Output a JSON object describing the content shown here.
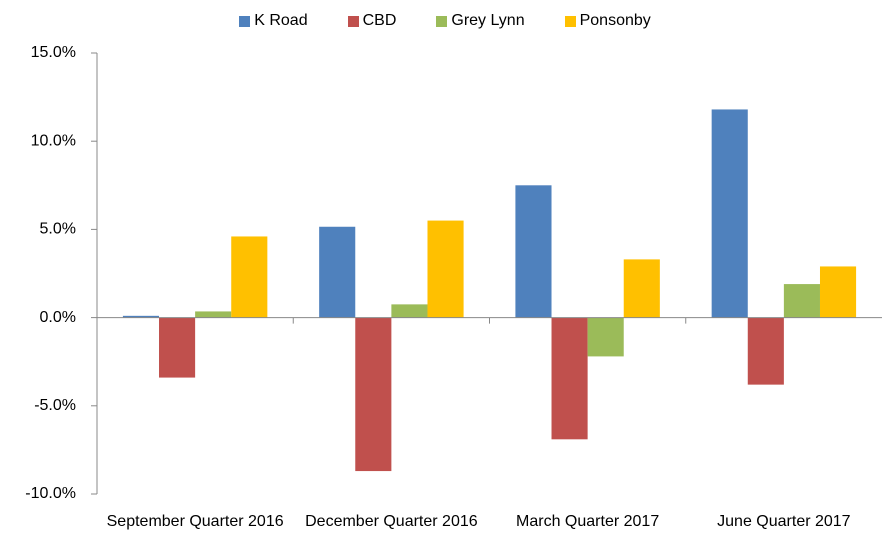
{
  "chart_data": {
    "type": "bar",
    "categories": [
      "September Quarter 2016",
      "December Quarter 2016",
      "March Quarter 2017",
      "June Quarter 2017"
    ],
    "series": [
      {
        "name": "K Road",
        "color": "#4f81bd",
        "values": [
          0.1,
          5.15,
          7.5,
          11.8
        ]
      },
      {
        "name": "CBD",
        "color": "#c0504d",
        "values": [
          -3.4,
          -8.7,
          -6.9,
          -3.8
        ]
      },
      {
        "name": "Grey Lynn",
        "color": "#9bbb59",
        "values": [
          0.35,
          0.75,
          -2.2,
          1.9
        ]
      },
      {
        "name": "Ponsonby",
        "color": "#ffc000",
        "values": [
          4.6,
          5.5,
          3.3,
          2.9
        ]
      }
    ],
    "ylim": [
      -10,
      15
    ],
    "yticks": [
      {
        "value": -10,
        "label": "-10.0%"
      },
      {
        "value": -5,
        "label": "-5.0%"
      },
      {
        "value": 0,
        "label": "0.0%"
      },
      {
        "value": 5,
        "label": "5.0%"
      },
      {
        "value": 10,
        "label": "10.0%"
      },
      {
        "value": 15,
        "label": "15.0%"
      }
    ],
    "grid": false,
    "legend": "top"
  }
}
